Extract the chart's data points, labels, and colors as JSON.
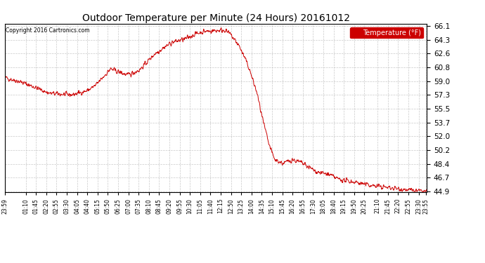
{
  "title": "Outdoor Temperature per Minute (24 Hours) 20161012",
  "copyright": "Copyright 2016 Cartronics.com",
  "line_color": "#cc0000",
  "bg_color": "#ffffff",
  "plot_bg_color": "#ffffff",
  "grid_color": "#bbbbbb",
  "yticks": [
    44.9,
    46.7,
    48.4,
    50.2,
    52.0,
    53.7,
    55.5,
    57.3,
    59.0,
    60.8,
    62.6,
    64.3,
    66.1
  ],
  "ymin": 44.9,
  "ymax": 66.1,
  "legend_label": "Temperature (°F)",
  "legend_bg": "#cc0000",
  "legend_text_color": "#ffffff",
  "xtick_labels": [
    "23:59",
    "01:10",
    "01:45",
    "02:20",
    "02:55",
    "03:30",
    "04:05",
    "04:40",
    "05:15",
    "05:50",
    "06:25",
    "07:00",
    "07:35",
    "08:10",
    "08:45",
    "09:20",
    "09:55",
    "10:30",
    "11:05",
    "11:40",
    "12:15",
    "12:50",
    "13:25",
    "14:00",
    "14:35",
    "15:10",
    "15:45",
    "16:20",
    "16:55",
    "17:30",
    "18:05",
    "18:40",
    "19:15",
    "19:50",
    "20:25",
    "21:10",
    "21:45",
    "22:20",
    "22:55",
    "23:30",
    "23:55"
  ],
  "profile": {
    "segments": [
      {
        "t0": 0,
        "t1": 50,
        "v0": 59.5,
        "v1": 59.0
      },
      {
        "t0": 50,
        "t1": 100,
        "v0": 59.0,
        "v1": 58.3
      },
      {
        "t0": 100,
        "t1": 150,
        "v0": 58.3,
        "v1": 57.5
      },
      {
        "t0": 150,
        "t1": 210,
        "v0": 57.5,
        "v1": 57.3
      },
      {
        "t0": 210,
        "t1": 230,
        "v0": 57.3,
        "v1": 57.3
      },
      {
        "t0": 230,
        "t1": 280,
        "v0": 57.3,
        "v1": 57.8
      },
      {
        "t0": 280,
        "t1": 310,
        "v0": 57.8,
        "v1": 58.5
      },
      {
        "t0": 310,
        "t1": 360,
        "v0": 58.5,
        "v1": 60.6
      },
      {
        "t0": 360,
        "t1": 390,
        "v0": 60.6,
        "v1": 60.2
      },
      {
        "t0": 390,
        "t1": 420,
        "v0": 60.2,
        "v1": 59.8
      },
      {
        "t0": 420,
        "t1": 460,
        "v0": 59.8,
        "v1": 60.5
      },
      {
        "t0": 460,
        "t1": 510,
        "v0": 60.5,
        "v1": 62.5
      },
      {
        "t0": 510,
        "t1": 540,
        "v0": 62.5,
        "v1": 63.3
      },
      {
        "t0": 540,
        "t1": 570,
        "v0": 63.3,
        "v1": 64.0
      },
      {
        "t0": 570,
        "t1": 620,
        "v0": 64.0,
        "v1": 64.5
      },
      {
        "t0": 620,
        "t1": 650,
        "v0": 64.5,
        "v1": 65.1
      },
      {
        "t0": 650,
        "t1": 680,
        "v0": 65.1,
        "v1": 65.4
      },
      {
        "t0": 680,
        "t1": 750,
        "v0": 65.4,
        "v1": 65.6
      },
      {
        "t0": 750,
        "t1": 770,
        "v0": 65.6,
        "v1": 65.0
      },
      {
        "t0": 770,
        "t1": 800,
        "v0": 65.0,
        "v1": 63.5
      },
      {
        "t0": 800,
        "t1": 830,
        "v0": 63.5,
        "v1": 61.0
      },
      {
        "t0": 830,
        "t1": 860,
        "v0": 61.0,
        "v1": 57.5
      },
      {
        "t0": 860,
        "t1": 880,
        "v0": 57.5,
        "v1": 54.0
      },
      {
        "t0": 880,
        "t1": 900,
        "v0": 54.0,
        "v1": 51.0
      },
      {
        "t0": 900,
        "t1": 920,
        "v0": 51.0,
        "v1": 49.0
      },
      {
        "t0": 920,
        "t1": 950,
        "v0": 49.0,
        "v1": 48.5
      },
      {
        "t0": 950,
        "t1": 980,
        "v0": 48.5,
        "v1": 49.0
      },
      {
        "t0": 980,
        "t1": 1010,
        "v0": 49.0,
        "v1": 48.6
      },
      {
        "t0": 1010,
        "t1": 1060,
        "v0": 48.6,
        "v1": 47.5
      },
      {
        "t0": 1060,
        "t1": 1090,
        "v0": 47.5,
        "v1": 47.2
      },
      {
        "t0": 1090,
        "t1": 1110,
        "v0": 47.2,
        "v1": 47.0
      },
      {
        "t0": 1110,
        "t1": 1130,
        "v0": 47.0,
        "v1": 46.6
      },
      {
        "t0": 1130,
        "t1": 1160,
        "v0": 46.6,
        "v1": 46.3
      },
      {
        "t0": 1160,
        "t1": 1200,
        "v0": 46.3,
        "v1": 46.1
      },
      {
        "t0": 1200,
        "t1": 1230,
        "v0": 46.1,
        "v1": 45.8
      },
      {
        "t0": 1230,
        "t1": 1270,
        "v0": 45.8,
        "v1": 45.6
      },
      {
        "t0": 1270,
        "t1": 1310,
        "v0": 45.6,
        "v1": 45.4
      },
      {
        "t0": 1310,
        "t1": 1360,
        "v0": 45.4,
        "v1": 45.2
      },
      {
        "t0": 1360,
        "t1": 1400,
        "v0": 45.2,
        "v1": 45.0
      },
      {
        "t0": 1400,
        "t1": 1439,
        "v0": 45.0,
        "v1": 44.9
      }
    ]
  }
}
